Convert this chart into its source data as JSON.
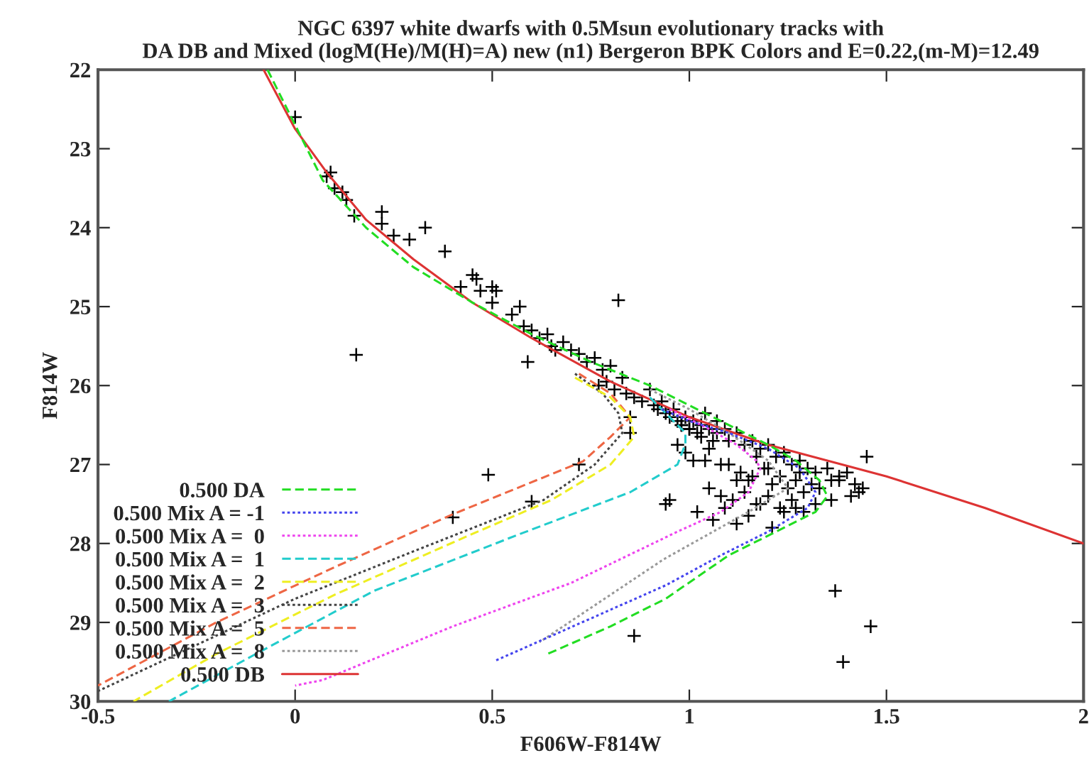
{
  "chart_data": {
    "type": "line",
    "title": "NGC 6397 white dwarfs with 0.5Msun evolutionary tracks with\nDA DB and Mixed (logM(He)/M(H)=A) new (n1) Bergeron BPK Colors and E=0.22,(m-M)=12.49",
    "xlabel": "F606W-F814W",
    "ylabel": "F814W",
    "xlim": [
      -0.5,
      2
    ],
    "ylim": [
      30,
      22
    ],
    "xticks": [
      -0.5,
      0,
      0.5,
      1,
      1.5,
      2
    ],
    "yticks": [
      22,
      23,
      24,
      25,
      26,
      27,
      28,
      29,
      30
    ],
    "grid": false,
    "legend": "bottom left",
    "series": [
      {
        "type": "scatter",
        "marker": "cross",
        "color": "#000000",
        "x": [
          0.0,
          0.09,
          0.08,
          0.1,
          0.12,
          0.13,
          0.15,
          0.22,
          0.22,
          0.25,
          0.29,
          0.33,
          0.38,
          0.155,
          0.42,
          0.45,
          0.46,
          0.47,
          0.5,
          0.51,
          0.5,
          0.55,
          0.57,
          0.58,
          0.6,
          0.62,
          0.64,
          0.65,
          0.66,
          0.68,
          0.59,
          0.82,
          0.49,
          0.4,
          0.6,
          0.72,
          0.85,
          0.85,
          0.95,
          0.94,
          1.37,
          1.46,
          1.39,
          0.86,
          1.45,
          0.7,
          0.72,
          0.74,
          0.76,
          0.78,
          0.8,
          0.77,
          0.79,
          0.81,
          0.83,
          0.84,
          0.86,
          0.88,
          0.9,
          0.91,
          0.92,
          0.93,
          0.94,
          0.95,
          0.96,
          0.97,
          0.98,
          0.99,
          1.0,
          1.01,
          1.02,
          1.03,
          1.04,
          1.05,
          1.06,
          0.97,
          0.99,
          1.01,
          1.03,
          1.05,
          1.07,
          1.09,
          1.1,
          1.12,
          1.14,
          1.16,
          1.18,
          1.2,
          1.22,
          1.24,
          1.26,
          1.28,
          1.3,
          1.32,
          1.1,
          1.13,
          1.15,
          1.17,
          1.19,
          1.21,
          1.23,
          1.25,
          1.27,
          1.29,
          1.31,
          1.05,
          1.08,
          1.11,
          1.14,
          1.17,
          1.2,
          1.23,
          1.26,
          1.29,
          1.02,
          1.06,
          1.09,
          1.12,
          1.15,
          1.18,
          1.21,
          1.24,
          1.27,
          1.33,
          1.36,
          1.38,
          1.4,
          1.42,
          1.44,
          1.41,
          1.36,
          1.32,
          1.04,
          1.08,
          1.12,
          1.16,
          1.2,
          1.24,
          1.28,
          0.98,
          1.0,
          1.07,
          1.35,
          1.38,
          1.43
        ],
        "values": [
          22.6,
          23.3,
          23.35,
          23.5,
          23.55,
          23.65,
          23.85,
          23.95,
          23.8,
          24.1,
          24.15,
          24.0,
          24.3,
          25.61,
          24.75,
          24.6,
          24.65,
          24.8,
          24.75,
          24.8,
          24.95,
          25.1,
          25.0,
          25.25,
          25.3,
          25.4,
          25.35,
          25.5,
          25.55,
          25.45,
          25.7,
          24.92,
          27.13,
          27.67,
          27.47,
          27.0,
          26.4,
          26.6,
          27.45,
          27.5,
          28.6,
          29.05,
          29.5,
          29.17,
          26.9,
          25.55,
          25.6,
          25.7,
          25.65,
          25.8,
          25.75,
          26.0,
          25.95,
          26.05,
          25.9,
          26.1,
          26.15,
          26.2,
          26.05,
          26.25,
          26.3,
          26.2,
          26.35,
          26.4,
          26.3,
          26.45,
          26.5,
          26.4,
          26.55,
          26.45,
          26.6,
          26.5,
          26.35,
          26.55,
          26.7,
          26.75,
          26.85,
          26.95,
          26.65,
          26.8,
          26.6,
          26.55,
          26.7,
          26.6,
          26.75,
          26.7,
          26.8,
          26.75,
          26.9,
          26.85,
          27.0,
          26.95,
          27.05,
          27.1,
          27.0,
          27.1,
          27.2,
          26.9,
          27.05,
          27.25,
          27.15,
          27.3,
          27.2,
          27.35,
          27.25,
          27.3,
          27.4,
          27.45,
          27.35,
          27.5,
          27.4,
          27.55,
          27.45,
          27.6,
          27.6,
          27.7,
          27.55,
          27.75,
          27.65,
          27.5,
          27.8,
          27.6,
          27.55,
          27.3,
          27.2,
          27.15,
          27.1,
          27.25,
          27.3,
          27.4,
          27.45,
          27.5,
          26.95,
          27.0,
          27.2,
          27.15,
          27.05,
          26.9,
          27.1,
          26.5,
          26.55,
          26.45,
          27.05,
          27.2,
          27.35
        ]
      },
      {
        "name": "0.500 DA",
        "color": "#22dd22",
        "line_style": "dashed",
        "x": [
          -0.07,
          0.0,
          0.07,
          0.18,
          0.3,
          0.45,
          0.6,
          0.75,
          0.9,
          1.0,
          1.1,
          1.2,
          1.27,
          1.33,
          1.35,
          1.32,
          1.22,
          1.1,
          0.94,
          0.8,
          0.64
        ],
        "values": [
          22.0,
          22.7,
          23.4,
          24.0,
          24.5,
          24.95,
          25.35,
          25.7,
          26.0,
          26.25,
          26.5,
          26.75,
          26.95,
          27.2,
          27.4,
          27.6,
          27.85,
          28.15,
          28.7,
          29.05,
          29.4
        ]
      },
      {
        "name": "0.500 Mix A = -1",
        "color": "#4444ee",
        "line_style": "dotted",
        "x": [
          0.93,
          1.0,
          1.1,
          1.2,
          1.28,
          1.32,
          1.3,
          1.2,
          1.08,
          0.94,
          0.75,
          0.51
        ],
        "values": [
          26.3,
          26.45,
          26.6,
          26.8,
          27.05,
          27.35,
          27.55,
          27.85,
          28.15,
          28.53,
          28.95,
          29.48
        ]
      },
      {
        "name": "0.500 Mix A =  0",
        "color": "#ee44ee",
        "line_style": "dotted",
        "x": [
          0.95,
          1.05,
          1.12,
          1.17,
          1.18,
          1.15,
          1.08,
          0.97,
          0.7,
          0.4,
          0.07,
          0.0
        ],
        "values": [
          26.3,
          26.55,
          26.75,
          26.95,
          27.05,
          27.35,
          27.6,
          27.85,
          28.5,
          29.05,
          29.73,
          29.8
        ]
      },
      {
        "name": "0.500 Mix A =  1",
        "color": "#22cccc",
        "line_style": "dashed",
        "x": [
          0.9,
          0.95,
          0.99,
          0.99,
          0.97,
          0.85,
          0.56,
          0.2,
          -0.1,
          -0.32
        ],
        "values": [
          26.15,
          26.4,
          26.6,
          26.74,
          27.0,
          27.35,
          27.9,
          28.6,
          29.4,
          30.0
        ]
      },
      {
        "name": "0.500 Mix A =  2",
        "color": "#eeee22",
        "line_style": "dashed",
        "x": [
          0.71,
          0.8,
          0.85,
          0.86,
          0.8,
          0.65,
          0.44,
          0.1,
          -0.2,
          -0.41
        ],
        "values": [
          25.9,
          26.15,
          26.4,
          26.65,
          27.0,
          27.45,
          27.9,
          28.65,
          29.4,
          30.0
        ]
      },
      {
        "name": "0.500 Mix A =  3",
        "color": "#444444",
        "line_style": "dotted",
        "x": [
          0.71,
          0.78,
          0.82,
          0.83,
          0.76,
          0.63,
          0.3,
          0.0,
          -0.5
        ],
        "values": [
          25.85,
          26.1,
          26.35,
          26.6,
          27.0,
          27.45,
          28.1,
          28.7,
          29.87
        ]
      },
      {
        "name": "0.500 Mix A =  5",
        "color": "#ee6644",
        "line_style": "dashed",
        "x": [
          0.72,
          0.8,
          0.85,
          0.8,
          0.73,
          0.4,
          0.1,
          -0.2,
          -0.5
        ],
        "values": [
          25.85,
          26.1,
          26.4,
          26.65,
          26.96,
          27.63,
          28.3,
          29.0,
          29.8
        ]
      },
      {
        "name": "0.500 Mix A =  8",
        "color": "#999999",
        "line_style": "dotted",
        "x": [
          0.9,
          1.0,
          1.1,
          1.2,
          1.25,
          1.15,
          0.935,
          0.8,
          0.62
        ],
        "values": [
          26.05,
          26.3,
          26.6,
          26.95,
          27.3,
          27.6,
          28.2,
          28.65,
          29.25
        ]
      },
      {
        "name": "0.500 DB",
        "color": "#dd3333",
        "line_style": "solid",
        "x": [
          -0.08,
          0.0,
          0.08,
          0.18,
          0.3,
          0.45,
          0.6,
          0.8,
          1.0,
          1.2,
          1.5,
          1.75,
          2.0
        ],
        "values": [
          22.0,
          22.75,
          23.3,
          23.9,
          24.4,
          24.95,
          25.4,
          25.95,
          26.4,
          26.75,
          27.15,
          27.55,
          28.0
        ]
      }
    ]
  }
}
